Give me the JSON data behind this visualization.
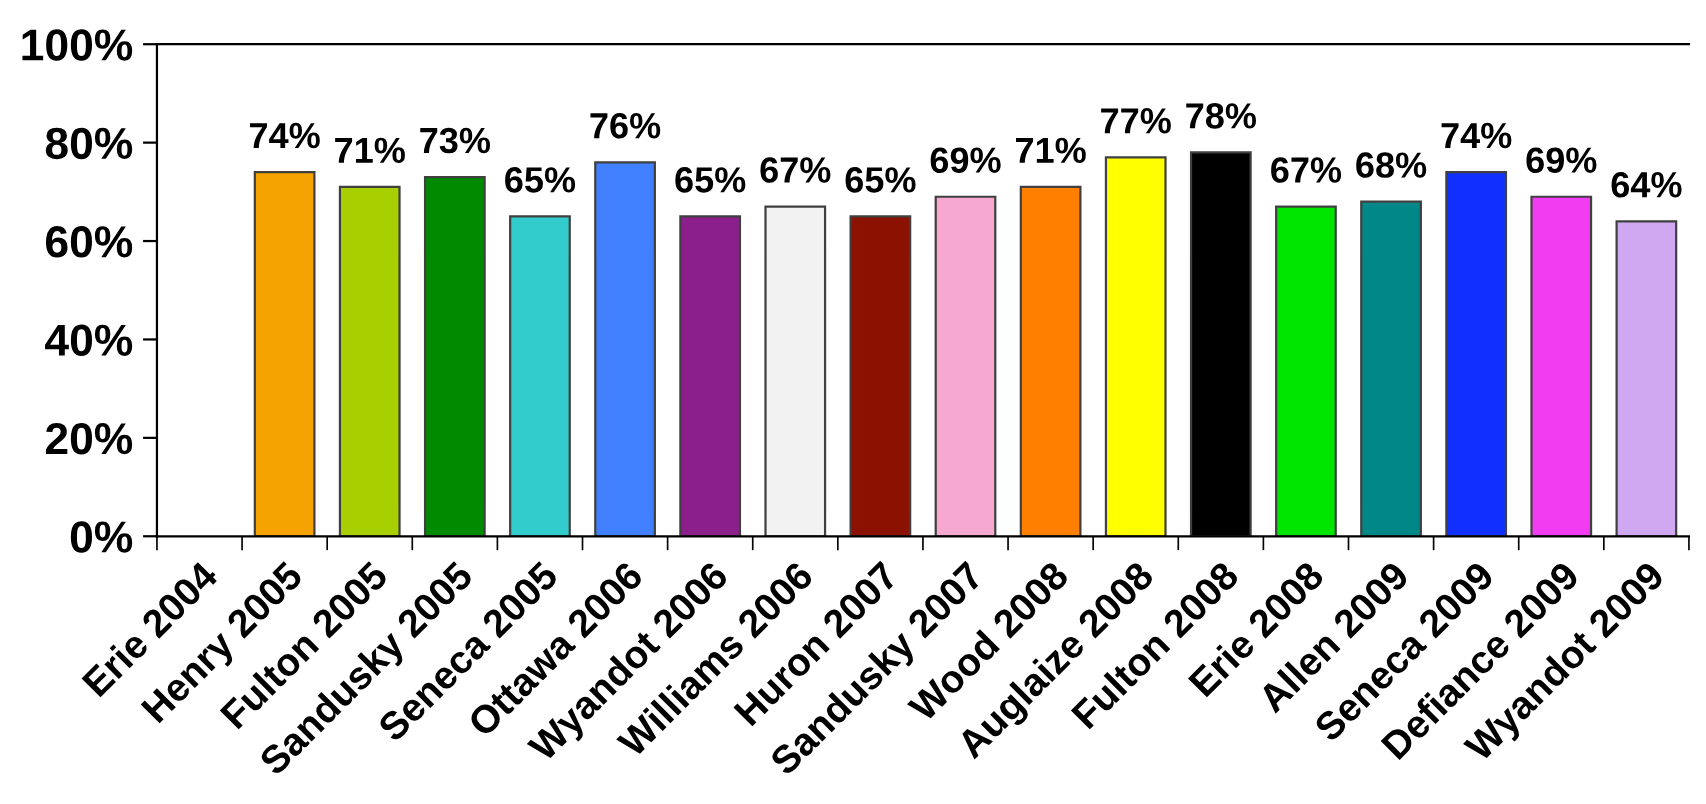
{
  "chart_data": {
    "type": "bar",
    "categories": [
      "Erie 2004",
      "Henry 2005",
      "Fulton 2005",
      "Sandusky 2005",
      "Seneca 2005",
      "Ottawa 2006",
      "Wyandot 2006",
      "Williams 2006",
      "Huron 2007",
      "Sandusky 2007",
      "Wood 2008",
      "Auglaize 2008",
      "Fulton 2008",
      "Erie 2008",
      "Allen 2009",
      "Seneca 2009",
      "Defiance 2009",
      "Wyandot 2009"
    ],
    "values": [
      null,
      74,
      71,
      73,
      65,
      76,
      65,
      67,
      65,
      69,
      71,
      77,
      78,
      67,
      68,
      74,
      69,
      64
    ],
    "value_labels": [
      null,
      "74%",
      "71%",
      "73%",
      "65%",
      "76%",
      "65%",
      "67%",
      "65%",
      "69%",
      "71%",
      "77%",
      "78%",
      "67%",
      "68%",
      "74%",
      "69%",
      "64%"
    ],
    "colors": [
      null,
      "#f5a300",
      "#a8d000",
      "#008a00",
      "#33cccc",
      "#4080ff",
      "#8b1f8b",
      "#f2f2f2",
      "#8b1100",
      "#f7a8d0",
      "#ff8000",
      "#ffff00",
      "#000000",
      "#00e600",
      "#008888",
      "#1030ff",
      "#f23cf2",
      "#d0a8f2"
    ],
    "ylim": [
      0,
      100
    ],
    "yticks": [
      {
        "value": 0,
        "label": "0%"
      },
      {
        "value": 20,
        "label": "20%"
      },
      {
        "value": 40,
        "label": "40%"
      },
      {
        "value": 60,
        "label": "60%"
      },
      {
        "value": 80,
        "label": "80%"
      },
      {
        "value": 100,
        "label": "100%"
      }
    ],
    "grid": false,
    "legend": false
  }
}
